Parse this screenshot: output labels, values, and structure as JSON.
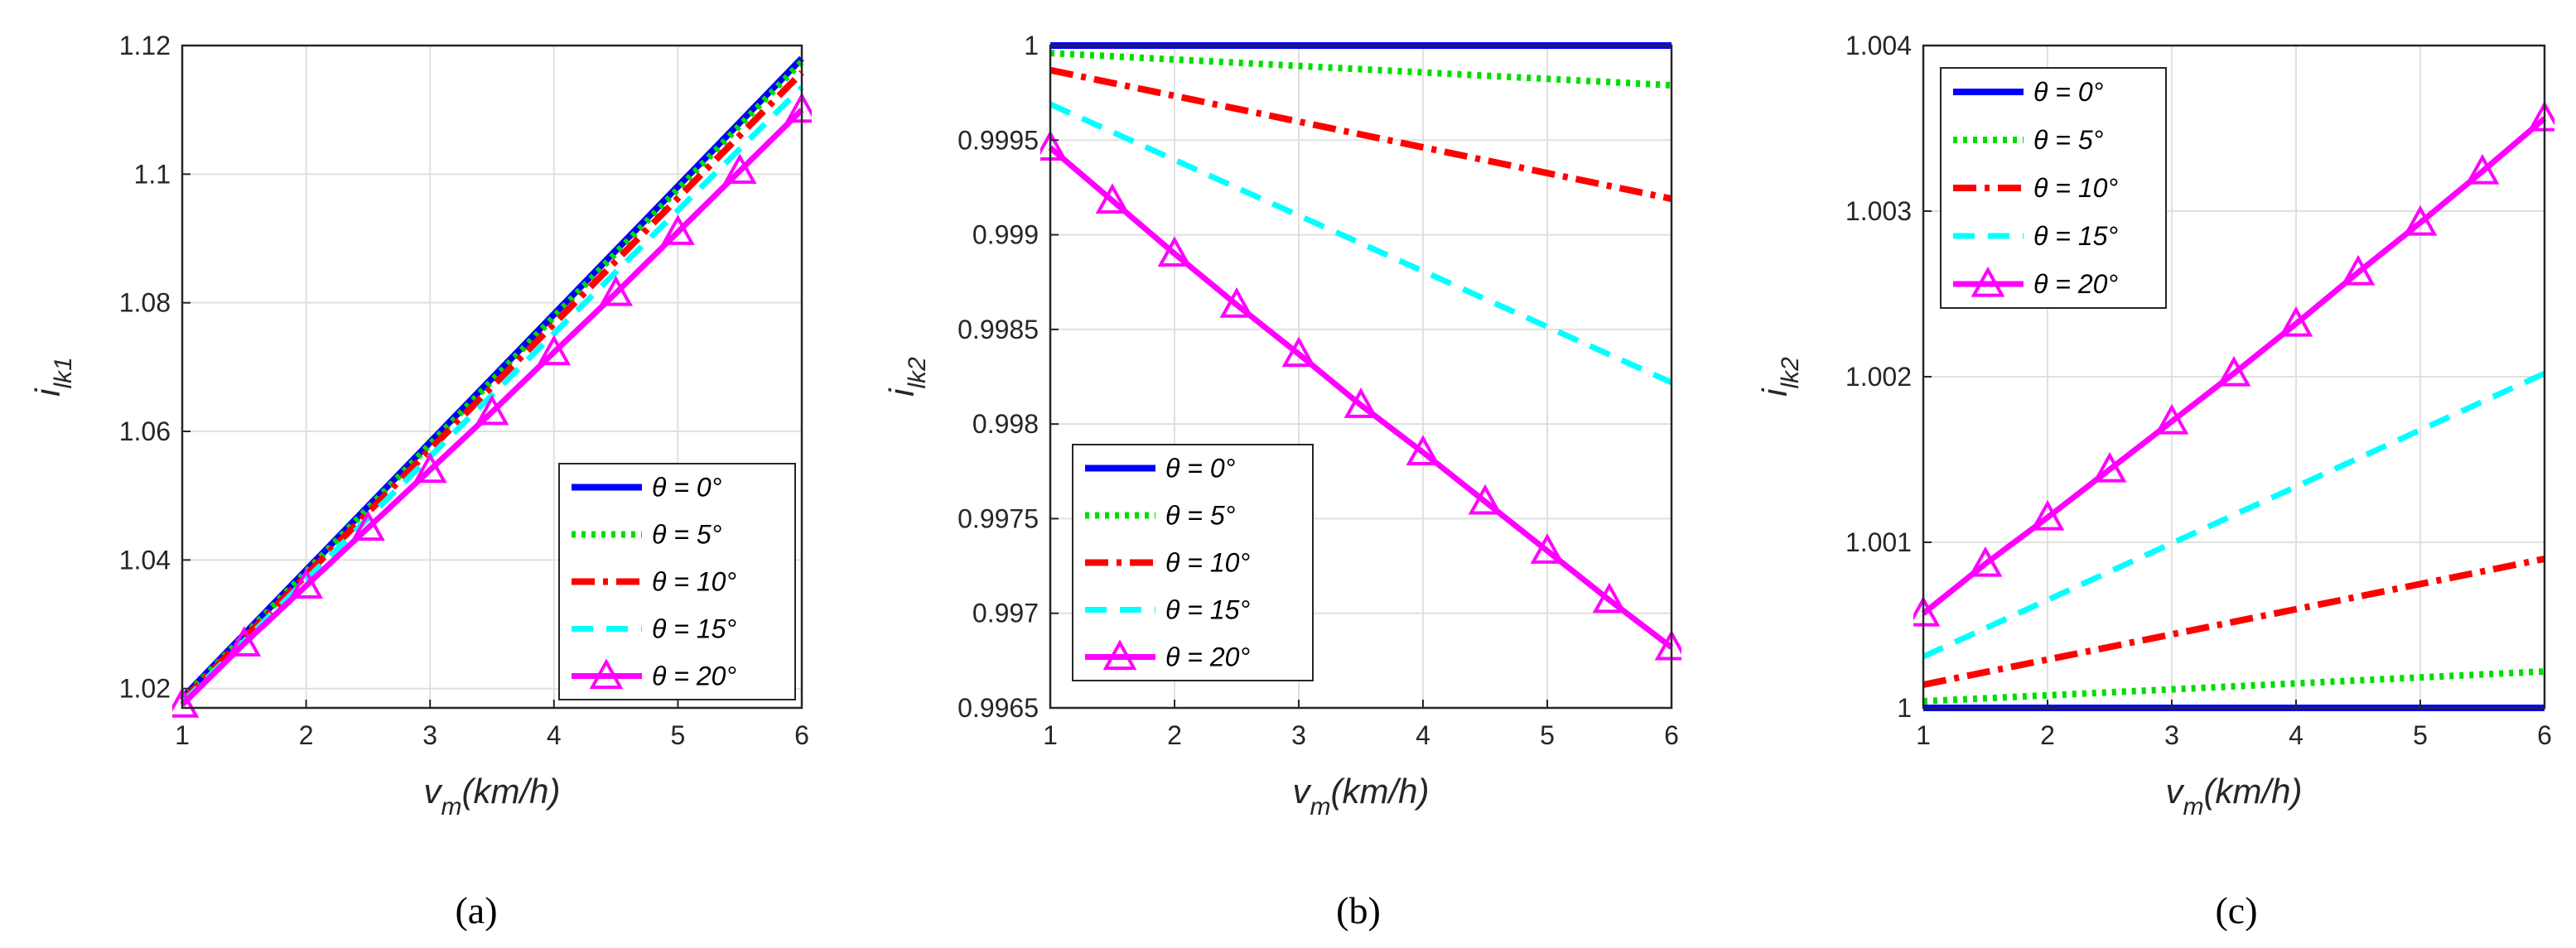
{
  "colors": {
    "s0": "#0000FF",
    "s5": "#00DD00",
    "s10": "#FF0000",
    "s15": "#00FFFF",
    "s20": "#FF00FF"
  },
  "chart_data": [
    {
      "type": "line",
      "caption": "(a)",
      "xlabel": "v",
      "xlabel_sub": "m",
      "xlabel_tail": "(km/h)",
      "ylabel": "i",
      "ylabel_sub": "lk1",
      "xlim": [
        1,
        6
      ],
      "ylim": [
        1.017,
        1.12
      ],
      "xticks": [
        1,
        2,
        3,
        4,
        5,
        6
      ],
      "xtick_labels": [
        "1",
        "2",
        "3",
        "4",
        "5",
        "6"
      ],
      "yticks": [
        1.02,
        1.04,
        1.06,
        1.08,
        1.1,
        1.12
      ],
      "ytick_labels": [
        "1.02",
        "1.04",
        "1.06",
        "1.08",
        "1.1",
        "1.12"
      ],
      "grid": true,
      "legend_position": "bottom-right",
      "series": [
        {
          "name": "θ = 0°",
          "x": [
            1,
            6
          ],
          "y": [
            1.0185,
            1.118
          ]
        },
        {
          "name": "θ = 5°",
          "x": [
            1,
            6
          ],
          "y": [
            1.0183,
            1.1175
          ]
        },
        {
          "name": "θ = 10°",
          "x": [
            1,
            6
          ],
          "y": [
            1.0181,
            1.1158
          ]
        },
        {
          "name": "θ = 15°",
          "x": [
            1,
            6
          ],
          "y": [
            1.0178,
            1.1135
          ]
        },
        {
          "name": "θ = 20°",
          "x": [
            1,
            1.5,
            2,
            2.5,
            3,
            3.5,
            4,
            4.5,
            5,
            5.5,
            6
          ],
          "y": [
            1.0175,
            1.027,
            1.036,
            1.045,
            1.054,
            1.063,
            1.0723,
            1.0815,
            1.091,
            1.1005,
            1.11
          ]
        }
      ]
    },
    {
      "type": "line",
      "caption": "(b)",
      "xlabel": "v",
      "xlabel_sub": "m",
      "xlabel_tail": "(km/h)",
      "ylabel": "i",
      "ylabel_sub": "lk2",
      "xlim": [
        1,
        6
      ],
      "ylim": [
        0.9965,
        1.0
      ],
      "xticks": [
        1,
        2,
        3,
        4,
        5,
        6
      ],
      "xtick_labels": [
        "1",
        "2",
        "3",
        "4",
        "5",
        "6"
      ],
      "yticks": [
        0.9965,
        0.997,
        0.9975,
        0.998,
        0.9985,
        0.999,
        0.9995,
        1.0
      ],
      "ytick_labels": [
        "0.9965",
        "0.997",
        "0.9975",
        "0.998",
        "0.9985",
        "0.999",
        "0.9995",
        "1"
      ],
      "grid": true,
      "legend_position": "bottom-left",
      "series": [
        {
          "name": "θ = 0°",
          "x": [
            1,
            6
          ],
          "y": [
            1.0,
            1.0
          ]
        },
        {
          "name": "θ = 5°",
          "x": [
            1,
            6
          ],
          "y": [
            0.99996,
            0.99979
          ]
        },
        {
          "name": "θ = 10°",
          "x": [
            1,
            6
          ],
          "y": [
            0.99987,
            0.99919
          ]
        },
        {
          "name": "θ = 15°",
          "x": [
            1,
            6
          ],
          "y": [
            0.99969,
            0.99822
          ]
        },
        {
          "name": "θ = 20°",
          "x": [
            1,
            1.5,
            2,
            2.5,
            3,
            3.5,
            4,
            4.5,
            5,
            5.5,
            6
          ],
          "y": [
            0.99946,
            0.99918,
            0.9989,
            0.99863,
            0.99837,
            0.9981,
            0.99785,
            0.99759,
            0.99733,
            0.99707,
            0.99682
          ]
        }
      ]
    },
    {
      "type": "line",
      "caption": "(c)",
      "xlabel": "v",
      "xlabel_sub": "m",
      "xlabel_tail": "(km/h)",
      "ylabel": "i",
      "ylabel_sub": "lk2",
      "xlim": [
        1,
        6
      ],
      "ylim": [
        1.0,
        1.004
      ],
      "xticks": [
        1,
        2,
        3,
        4,
        5,
        6
      ],
      "xtick_labels": [
        "1",
        "2",
        "3",
        "4",
        "5",
        "6"
      ],
      "yticks": [
        1.0,
        1.001,
        1.002,
        1.003,
        1.004
      ],
      "ytick_labels": [
        "1",
        "1.001",
        "1.002",
        "1.003",
        "1.004"
      ],
      "grid": true,
      "legend_position": "top-left",
      "series": [
        {
          "name": "θ = 0°",
          "x": [
            1,
            6
          ],
          "y": [
            1.0,
            1.0
          ]
        },
        {
          "name": "θ = 5°",
          "x": [
            1,
            6
          ],
          "y": [
            1.00004,
            1.00022
          ]
        },
        {
          "name": "θ = 10°",
          "x": [
            1,
            6
          ],
          "y": [
            1.00014,
            1.0009
          ]
        },
        {
          "name": "θ = 15°",
          "x": [
            1,
            6
          ],
          "y": [
            1.00031,
            1.00202
          ]
        },
        {
          "name": "θ = 20°",
          "x": [
            1,
            1.5,
            2,
            2.5,
            3,
            3.5,
            4,
            4.5,
            5,
            5.5,
            6
          ],
          "y": [
            1.00057,
            1.00087,
            1.00115,
            1.00144,
            1.00173,
            1.00202,
            1.00232,
            1.00263,
            1.00293,
            1.00324,
            1.00356
          ]
        }
      ]
    }
  ]
}
